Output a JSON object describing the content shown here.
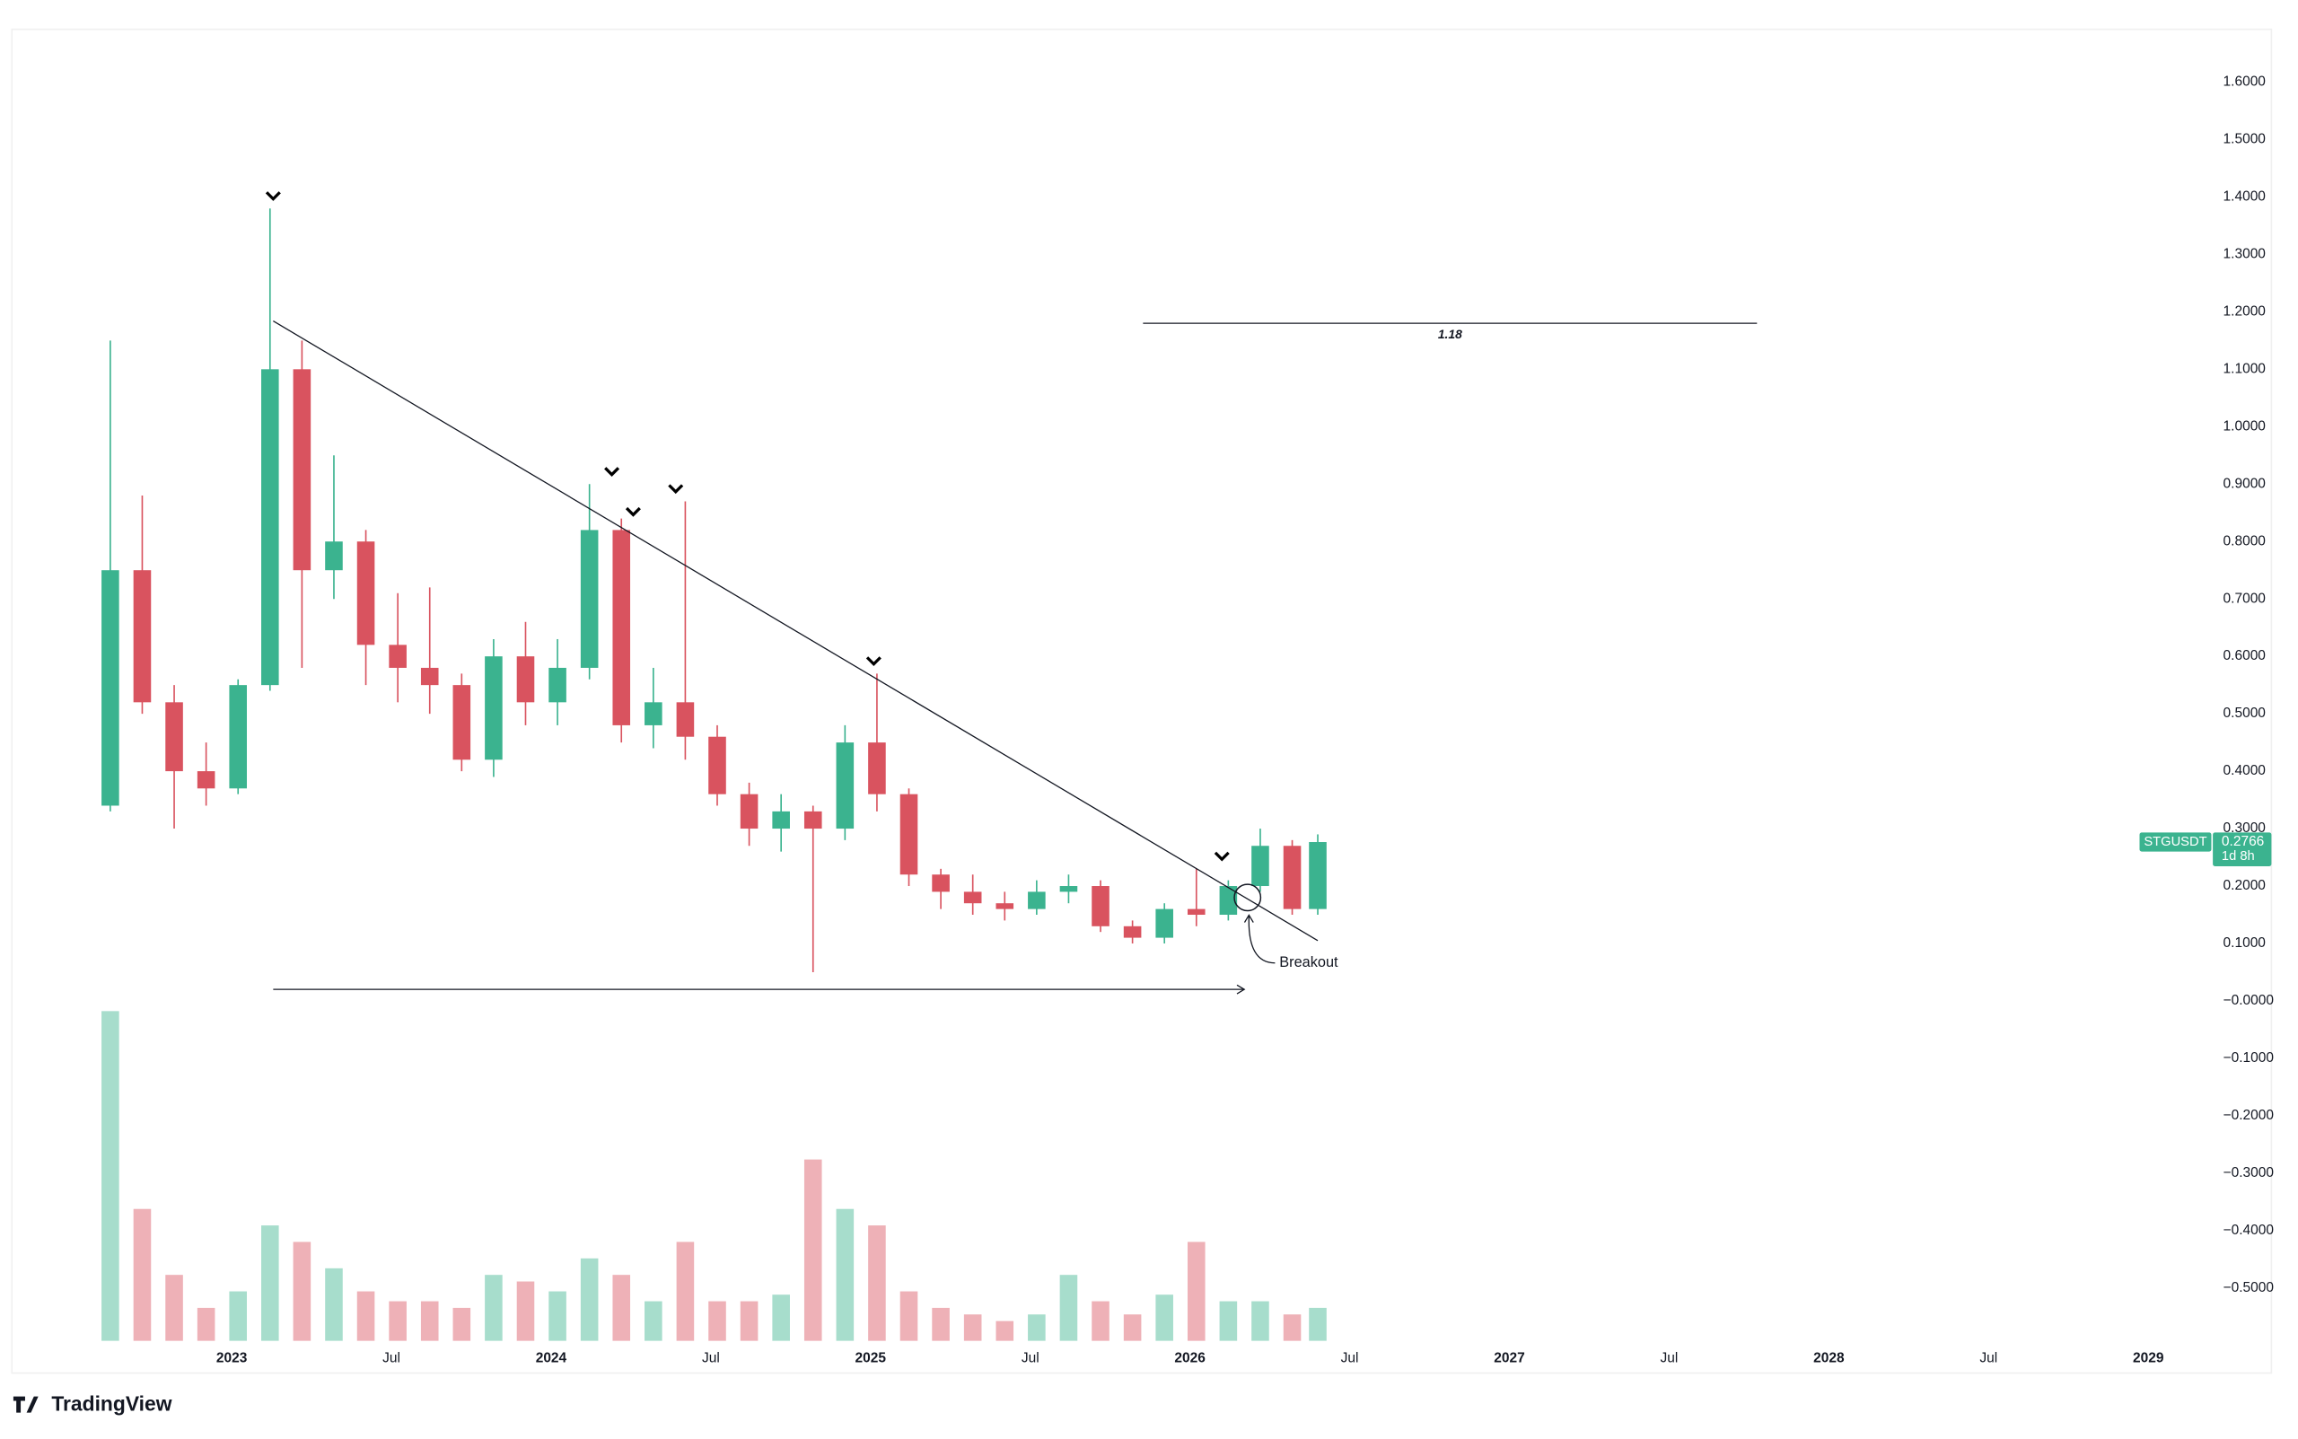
{
  "chart_data": {
    "type": "candlestick",
    "symbol": "STGUSDT",
    "countdown": "1d 8h",
    "up_color": "#3bb38f",
    "down_color": "#d9535f",
    "x": [
      2022.62,
      2022.72,
      2022.82,
      2022.92,
      2023.02,
      2023.12,
      2023.22,
      2023.32,
      2023.42,
      2023.52,
      2023.62,
      2023.72,
      2023.82,
      2023.92,
      2024.02,
      2024.12,
      2024.22,
      2024.32,
      2024.42,
      2024.52,
      2024.62,
      2024.72,
      2024.82,
      2024.92,
      2025.02,
      2025.12,
      2025.22,
      2025.32,
      2025.42,
      2025.52,
      2025.62,
      2025.72,
      2025.82,
      2025.92,
      2026.02,
      2026.12,
      2026.22,
      2026.32,
      2026.4
    ],
    "open": [
      0.34,
      0.75,
      0.52,
      0.4,
      0.37,
      0.55,
      1.1,
      0.75,
      0.8,
      0.62,
      0.58,
      0.55,
      0.42,
      0.6,
      0.52,
      0.58,
      0.82,
      0.48,
      0.52,
      0.46,
      0.36,
      0.3,
      0.33,
      0.3,
      0.45,
      0.36,
      0.22,
      0.19,
      0.17,
      0.16,
      0.19,
      0.2,
      0.13,
      0.11,
      0.16,
      0.15,
      0.2,
      0.27,
      0.16
    ],
    "high": [
      1.15,
      0.88,
      0.55,
      0.45,
      0.56,
      1.38,
      1.15,
      0.95,
      0.82,
      0.71,
      0.72,
      0.57,
      0.63,
      0.66,
      0.63,
      0.9,
      0.84,
      0.58,
      0.87,
      0.48,
      0.38,
      0.36,
      0.34,
      0.48,
      0.57,
      0.37,
      0.23,
      0.22,
      0.19,
      0.21,
      0.22,
      0.21,
      0.14,
      0.17,
      0.23,
      0.21,
      0.3,
      0.28,
      0.29
    ],
    "low": [
      0.33,
      0.5,
      0.3,
      0.34,
      0.36,
      0.54,
      0.58,
      0.7,
      0.55,
      0.52,
      0.5,
      0.4,
      0.39,
      0.48,
      0.48,
      0.56,
      0.45,
      0.44,
      0.42,
      0.34,
      0.27,
      0.26,
      0.05,
      0.28,
      0.33,
      0.2,
      0.16,
      0.15,
      0.14,
      0.15,
      0.17,
      0.12,
      0.1,
      0.1,
      0.13,
      0.14,
      0.19,
      0.15,
      0.15
    ],
    "close": [
      0.75,
      0.52,
      0.4,
      0.37,
      0.55,
      1.1,
      0.75,
      0.8,
      0.62,
      0.58,
      0.55,
      0.42,
      0.6,
      0.52,
      0.58,
      0.82,
      0.48,
      0.52,
      0.46,
      0.36,
      0.3,
      0.33,
      0.3,
      0.45,
      0.36,
      0.22,
      0.19,
      0.17,
      0.16,
      0.19,
      0.2,
      0.13,
      0.11,
      0.16,
      0.15,
      0.2,
      0.27,
      0.16,
      0.2766
    ],
    "volume": [
      100,
      40,
      20,
      10,
      15,
      35,
      30,
      22,
      15,
      12,
      12,
      10,
      20,
      18,
      15,
      25,
      20,
      12,
      30,
      12,
      12,
      14,
      55,
      40,
      35,
      15,
      10,
      8,
      6,
      8,
      20,
      12,
      8,
      14,
      30,
      12,
      12,
      8,
      10
    ],
    "vlim": [
      0,
      100
    ],
    "xlim": [
      2022.312,
      2029.202
    ],
    "ylim": [
      -0.592,
      1.692
    ],
    "xticks": [
      {
        "value": 2023,
        "label": "2023"
      },
      {
        "value": 2023.5,
        "label": "Jul"
      },
      {
        "value": 2024,
        "label": "2024"
      },
      {
        "value": 2024.5,
        "label": "Jul"
      },
      {
        "value": 2025,
        "label": "2025"
      },
      {
        "value": 2025.5,
        "label": "Jul"
      },
      {
        "value": 2026,
        "label": "2026"
      },
      {
        "value": 2026.5,
        "label": "Jul"
      },
      {
        "value": 2027,
        "label": "2027"
      },
      {
        "value": 2027.5,
        "label": "Jul"
      },
      {
        "value": 2028,
        "label": "2028"
      },
      {
        "value": 2028.5,
        "label": "Jul"
      },
      {
        "value": 2029,
        "label": "2029"
      }
    ],
    "yticks": [
      {
        "value": 1.6,
        "label": "1.6000"
      },
      {
        "value": 1.5,
        "label": "1.5000"
      },
      {
        "value": 1.4,
        "label": "1.4000"
      },
      {
        "value": 1.3,
        "label": "1.3000"
      },
      {
        "value": 1.2,
        "label": "1.2000"
      },
      {
        "value": 1.1,
        "label": "1.1000"
      },
      {
        "value": 1.0,
        "label": "1.0000"
      },
      {
        "value": 0.9,
        "label": "0.9000"
      },
      {
        "value": 0.8,
        "label": "0.8000"
      },
      {
        "value": 0.7,
        "label": "0.7000"
      },
      {
        "value": 0.6,
        "label": "0.6000"
      },
      {
        "value": 0.5,
        "label": "0.5000"
      },
      {
        "value": 0.4,
        "label": "0.4000"
      },
      {
        "value": 0.3,
        "label": "0.3000"
      },
      {
        "value": 0.2,
        "label": "0.2000"
      },
      {
        "value": 0.1,
        "label": "0.1000"
      },
      {
        "value": 0,
        "label": "−0.0000"
      },
      {
        "value": -0.1,
        "label": "−0.1000"
      },
      {
        "value": -0.2,
        "label": "−0.2000"
      },
      {
        "value": -0.3,
        "label": "−0.3000"
      },
      {
        "value": -0.4,
        "label": "−0.4000"
      },
      {
        "value": -0.5,
        "label": "−0.5000"
      }
    ],
    "trendline": {
      "x": [
        2023.13,
        2026.4
      ],
      "y": [
        1.184,
        0.105
      ]
    },
    "level": {
      "value": 1.18,
      "label": "1.18",
      "x": [
        2025.853,
        2027.775
      ]
    },
    "range_arrow": {
      "x": [
        2023.13,
        2026.17
      ],
      "y": 0.02
    },
    "peaks": [
      {
        "x": 2023.13,
        "y": 1.38
      },
      {
        "x": 2024.19,
        "y": 0.9
      },
      {
        "x": 2024.257,
        "y": 0.83
      },
      {
        "x": 2024.39,
        "y": 0.87
      },
      {
        "x": 2025.01,
        "y": 0.57
      },
      {
        "x": 2026.1,
        "y": 0.23
      }
    ],
    "breakout": {
      "text": "Breakout",
      "x": 2026.18,
      "y": 0.18,
      "label_x": 2026.28,
      "label_y": 0.066
    }
  },
  "brand": "TradingView"
}
